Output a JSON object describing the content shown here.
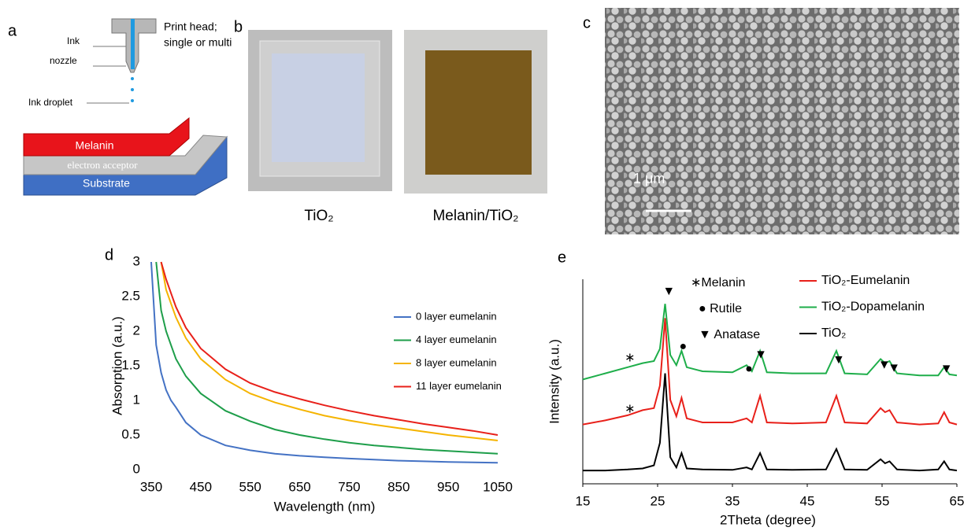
{
  "panels": {
    "a": {
      "label": "a",
      "ink": "Ink",
      "nozzle": "nozzle",
      "print_head": [
        "Print head;",
        "single or multi"
      ],
      "droplet": "Ink droplet",
      "layers": [
        "Melanin",
        "electron acceptor",
        "Substrate"
      ]
    },
    "b": {
      "label": "b",
      "captions": [
        "TiO₂",
        "Melanin/TiO₂"
      ]
    },
    "c": {
      "label": "c",
      "scale": "1 μm"
    }
  },
  "chart_data": [
    {
      "type": "line",
      "panel_label": "d",
      "x_label": "Wavelength (nm)",
      "y_label": "Absorption (a.u.)",
      "x": [
        350,
        360,
        370,
        380,
        390,
        400,
        420,
        450,
        500,
        550,
        600,
        650,
        700,
        750,
        800,
        850,
        900,
        950,
        1000,
        1050
      ],
      "series": [
        {
          "name": "0 layer eumelanin",
          "color": "#4472c4",
          "values": [
            3,
            1.8,
            1.4,
            1.15,
            1.0,
            0.9,
            0.68,
            0.5,
            0.35,
            0.28,
            0.23,
            0.2,
            0.18,
            0.16,
            0.145,
            0.13,
            0.12,
            0.11,
            0.105,
            0.1
          ]
        },
        {
          "name": "4 layer eumelanin",
          "color": "#1e9e4a",
          "values": [
            null,
            3,
            2.3,
            2.0,
            1.8,
            1.6,
            1.35,
            1.1,
            0.85,
            0.7,
            0.58,
            0.5,
            0.44,
            0.39,
            0.35,
            0.32,
            0.29,
            0.27,
            0.25,
            0.23
          ]
        },
        {
          "name": "8 layer eumelanin",
          "color": "#f5b400",
          "values": [
            null,
            null,
            3,
            2.6,
            2.4,
            2.2,
            1.9,
            1.6,
            1.3,
            1.1,
            0.97,
            0.87,
            0.78,
            0.71,
            0.65,
            0.6,
            0.55,
            0.5,
            0.46,
            0.42
          ]
        },
        {
          "name": "11 layer eumelanin",
          "color": "#e8201a",
          "values": [
            null,
            null,
            3,
            2.75,
            2.55,
            2.35,
            2.05,
            1.75,
            1.45,
            1.25,
            1.12,
            1.02,
            0.93,
            0.85,
            0.78,
            0.72,
            0.66,
            0.61,
            0.56,
            0.5
          ]
        }
      ],
      "xlim": [
        350,
        1050
      ],
      "xticks": [
        350,
        450,
        550,
        650,
        750,
        850,
        950,
        1050
      ],
      "ylim": [
        0,
        3
      ],
      "yticks": [
        0,
        0.5,
        1,
        1.5,
        2,
        2.5,
        3
      ],
      "grid": false
    },
    {
      "type": "line",
      "panel_label": "e",
      "x_label": "2Theta (degree)",
      "y_label": "Intensity (a.u.)",
      "x": [
        15,
        18,
        21,
        23,
        24.5,
        25.3,
        26,
        26.7,
        27.5,
        28.2,
        28.9,
        31,
        35,
        36.9,
        37.6,
        38.7,
        39.6,
        43,
        47.5,
        48.9,
        50,
        53,
        54.8,
        55.4,
        56,
        57,
        60,
        62.5,
        63.3,
        64,
        65
      ],
      "series": [
        {
          "name": "TiO₂-Eumelanin",
          "color": "#e8201a",
          "values": [
            2.9,
            3.1,
            3.35,
            3.6,
            3.7,
            4.8,
            8.1,
            4.1,
            3.3,
            4.2,
            3.2,
            3.0,
            3.0,
            3.2,
            3.0,
            4.3,
            3.0,
            2.95,
            3.0,
            4.3,
            3.0,
            2.95,
            3.7,
            3.5,
            3.6,
            3.0,
            2.9,
            2.95,
            3.5,
            3.0,
            2.9
          ]
        },
        {
          "name": "TiO₂-Dopamelanin",
          "color": "#1eae4a",
          "values": [
            5.1,
            5.4,
            5.7,
            5.9,
            6.0,
            6.6,
            8.8,
            6.3,
            5.8,
            6.5,
            5.7,
            5.5,
            5.45,
            5.8,
            5.5,
            6.5,
            5.45,
            5.4,
            5.4,
            6.5,
            5.4,
            5.35,
            6.1,
            5.9,
            6.0,
            5.4,
            5.3,
            5.3,
            5.7,
            5.35,
            5.3
          ]
        },
        {
          "name": "TiO₂",
          "color": "#000000",
          "values": [
            0.65,
            0.65,
            0.7,
            0.75,
            0.9,
            2.0,
            5.4,
            1.3,
            0.8,
            1.5,
            0.75,
            0.7,
            0.68,
            0.8,
            0.7,
            1.5,
            0.7,
            0.68,
            0.7,
            1.7,
            0.7,
            0.68,
            1.2,
            1.0,
            1.1,
            0.7,
            0.65,
            0.7,
            1.1,
            0.7,
            0.65
          ]
        }
      ],
      "marker_legend": [
        "∗Melanin",
        "● Rutile",
        "▼ Anatase"
      ],
      "peak_markers": [
        {
          "symbol": "▼",
          "x": 26.5,
          "y": 9.4
        },
        {
          "symbol": "●",
          "x": 28.4,
          "y": 6.7
        },
        {
          "symbol": "∗",
          "x": 21.3,
          "y": 6.15
        },
        {
          "symbol": "●",
          "x": 37.2,
          "y": 5.6
        },
        {
          "symbol": "▼",
          "x": 38.8,
          "y": 6.3
        },
        {
          "symbol": "▼",
          "x": 49.2,
          "y": 6.05
        },
        {
          "symbol": "▼",
          "x": 55.3,
          "y": 5.8
        },
        {
          "symbol": "▼",
          "x": 56.6,
          "y": 5.65
        },
        {
          "symbol": "▼",
          "x": 63.6,
          "y": 5.6
        },
        {
          "symbol": "∗",
          "x": 21.3,
          "y": 3.65
        }
      ],
      "xlim": [
        15,
        65
      ],
      "xticks": [
        15,
        25,
        35,
        45,
        55,
        65
      ],
      "ylim": [
        0,
        10
      ],
      "grid": false
    }
  ]
}
